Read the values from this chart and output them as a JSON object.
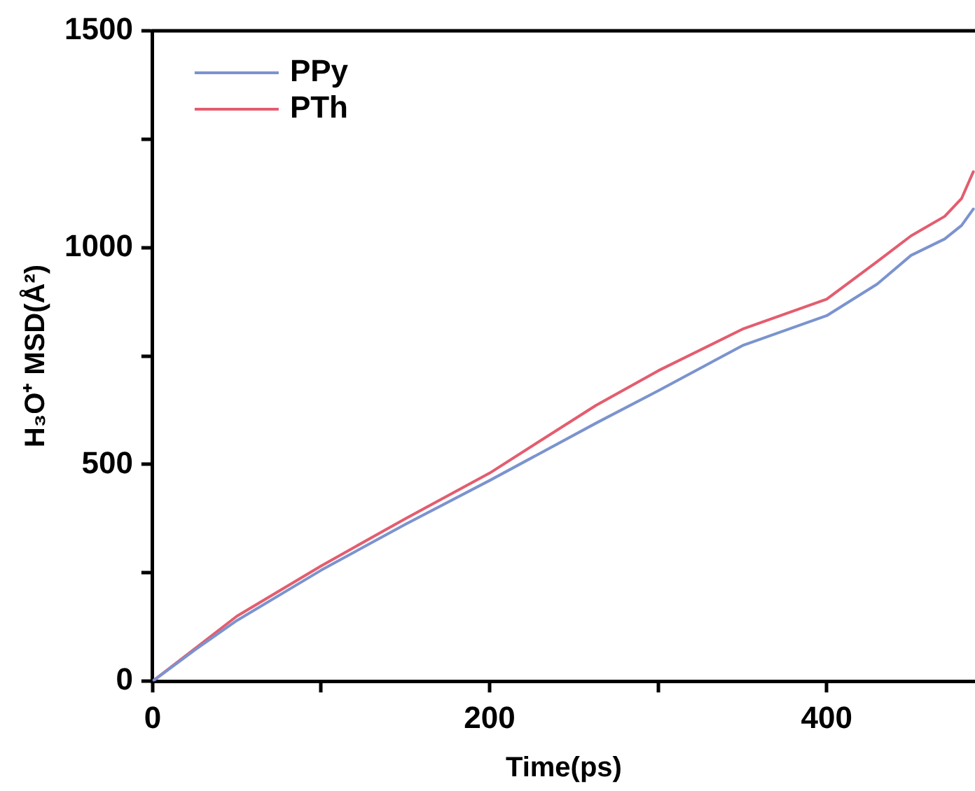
{
  "chart_data": {
    "type": "line",
    "xlabel": "Time(ps)",
    "ylabel": "H₃O⁺ MSD(Å²)",
    "xlim": [
      0,
      488
    ],
    "ylim": [
      0,
      1500
    ],
    "xticks": [
      0,
      {
        "value": 100,
        "label": null
      },
      200,
      {
        "value": 300,
        "label": null
      },
      400
    ],
    "yticks": [
      0,
      {
        "value": 250,
        "label": null
      },
      500,
      {
        "value": 750,
        "label": null
      },
      1000,
      {
        "value": 1250,
        "label": null
      },
      1500
    ],
    "legend": "top left",
    "marker": "none",
    "line_style": "solid",
    "series": [
      {
        "name": "PPy",
        "color": "#7b93cf",
        "x": [
          0,
          25,
          50,
          100,
          150,
          200,
          263,
          300,
          350,
          400,
          430,
          450,
          470,
          480,
          487
        ],
        "values": [
          0,
          72,
          140,
          256,
          362,
          463,
          595,
          670,
          774,
          843,
          916,
          982,
          1020,
          1051,
          1089
        ]
      },
      {
        "name": "PTh",
        "color": "#e35d6f",
        "x": [
          0,
          25,
          50,
          100,
          150,
          200,
          263,
          300,
          350,
          400,
          430,
          450,
          470,
          480,
          487
        ],
        "values": [
          0,
          75,
          150,
          266,
          375,
          480,
          636,
          716,
          812,
          881,
          968,
          1027,
          1072,
          1113,
          1175
        ]
      }
    ]
  }
}
